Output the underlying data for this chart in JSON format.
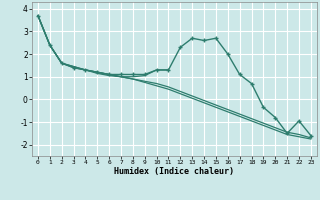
{
  "xlabel": "Humidex (Indice chaleur)",
  "background_color": "#cce8e8",
  "grid_color": "#ffffff",
  "line_color": "#2e7d6e",
  "x_ticks": [
    0,
    1,
    2,
    3,
    4,
    5,
    6,
    7,
    8,
    9,
    10,
    11,
    12,
    13,
    14,
    15,
    16,
    17,
    18,
    19,
    20,
    21,
    22,
    23
  ],
  "ylim": [
    -2.5,
    4.3
  ],
  "yticks": [
    -2,
    -1,
    0,
    1,
    2,
    3,
    4
  ],
  "series": [
    [
      3.7,
      2.4,
      1.6,
      1.4,
      1.3,
      1.2,
      1.1,
      1.1,
      1.1,
      1.1,
      1.3,
      1.3,
      2.3,
      2.7,
      2.6,
      2.7,
      2.0,
      1.1,
      0.7,
      -0.35,
      -0.8,
      -1.5,
      -0.95,
      -1.6
    ],
    [
      3.7,
      2.4,
      1.6,
      1.4,
      1.3,
      1.15,
      1.05,
      1.0,
      1.0,
      1.05,
      1.3,
      1.3,
      null,
      null,
      null,
      null,
      null,
      null,
      null,
      null,
      null,
      null,
      null,
      null
    ],
    [
      3.7,
      2.4,
      1.6,
      1.45,
      1.3,
      1.2,
      1.1,
      1.0,
      0.9,
      0.8,
      0.7,
      0.55,
      0.35,
      0.15,
      -0.05,
      -0.25,
      -0.45,
      -0.65,
      -0.85,
      -1.05,
      -1.25,
      -1.45,
      -1.55,
      -1.7
    ],
    [
      3.7,
      2.4,
      1.6,
      1.45,
      1.3,
      1.2,
      1.1,
      1.0,
      0.9,
      0.75,
      0.6,
      0.45,
      0.25,
      0.05,
      -0.15,
      -0.35,
      -0.55,
      -0.75,
      -0.95,
      -1.15,
      -1.35,
      -1.55,
      -1.65,
      -1.75
    ]
  ]
}
